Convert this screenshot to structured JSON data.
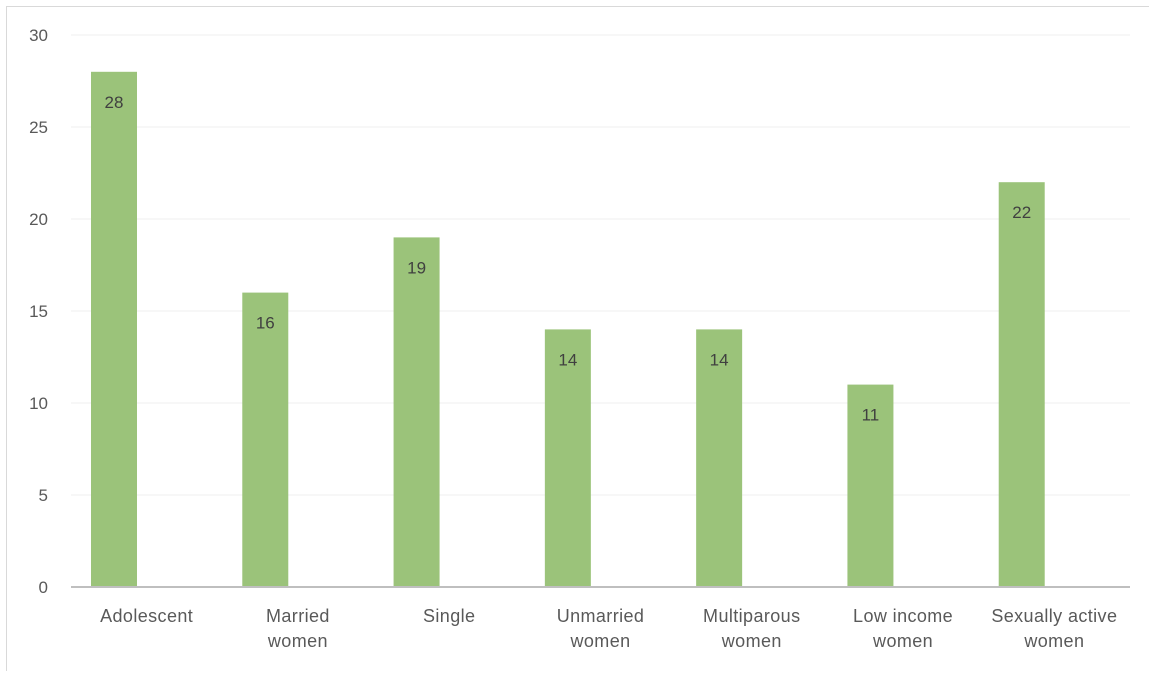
{
  "chart_data": {
    "type": "bar",
    "categories": [
      [
        "Adolescent"
      ],
      [
        "Married",
        "women"
      ],
      [
        "Single"
      ],
      [
        "Unmarried",
        "women"
      ],
      [
        "Multiparous",
        "women"
      ],
      [
        "Low income",
        "women"
      ],
      [
        "Sexually active",
        "women"
      ]
    ],
    "values": [
      28,
      16,
      19,
      14,
      14,
      11,
      22
    ],
    "ylim": [
      0,
      30
    ],
    "yticks": [
      0,
      5,
      10,
      15,
      20,
      25,
      30
    ],
    "grid": true,
    "legend": "none",
    "bar_color": "#9bc37a",
    "title": "",
    "xlabel": "",
    "ylabel": ""
  }
}
